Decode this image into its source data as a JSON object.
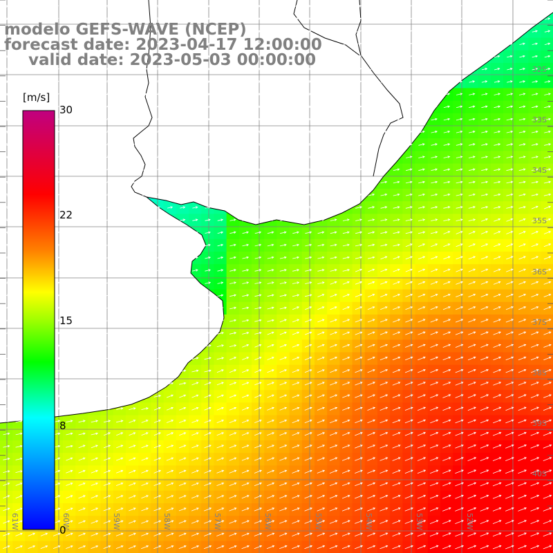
{
  "title": {
    "model": "modelo GEFS-WAVE (NCEP)",
    "forecast": "forecast date: 2023-04-17 12:00:00",
    "valid": "valid date: 2023-05-03 00:00:00"
  },
  "colorbar": {
    "unit": "[m/s]",
    "ticks": [
      "30",
      "22",
      "15",
      "8",
      "0"
    ],
    "tick_values": [
      30,
      22,
      15,
      8,
      0
    ],
    "min": 0,
    "max": 30,
    "stops": [
      {
        "v": 0,
        "color": "#0000ff"
      },
      {
        "v": 4,
        "color": "#0080ff"
      },
      {
        "v": 8,
        "color": "#00ffff"
      },
      {
        "v": 12,
        "color": "#00ff00"
      },
      {
        "v": 15,
        "color": "#a0ff00"
      },
      {
        "v": 17,
        "color": "#ffff00"
      },
      {
        "v": 20,
        "color": "#ff8000"
      },
      {
        "v": 24,
        "color": "#ff0000"
      },
      {
        "v": 30,
        "color": "#c00080"
      }
    ]
  },
  "map": {
    "lat_labels": [
      "32S",
      "33S",
      "34S",
      "35S",
      "36S",
      "37S",
      "38S",
      "39S",
      "40S"
    ],
    "lon_labels": [
      "61W",
      "60W",
      "59W",
      "58W",
      "57W",
      "56W",
      "55W",
      "54W",
      "53W",
      "52W"
    ],
    "land_color": "#ffffff",
    "coast_color": "#000000",
    "grid_color": "#808080",
    "arrow_color": "#ffffff",
    "wind_direction": "from west-southwest toward east-northeast"
  }
}
